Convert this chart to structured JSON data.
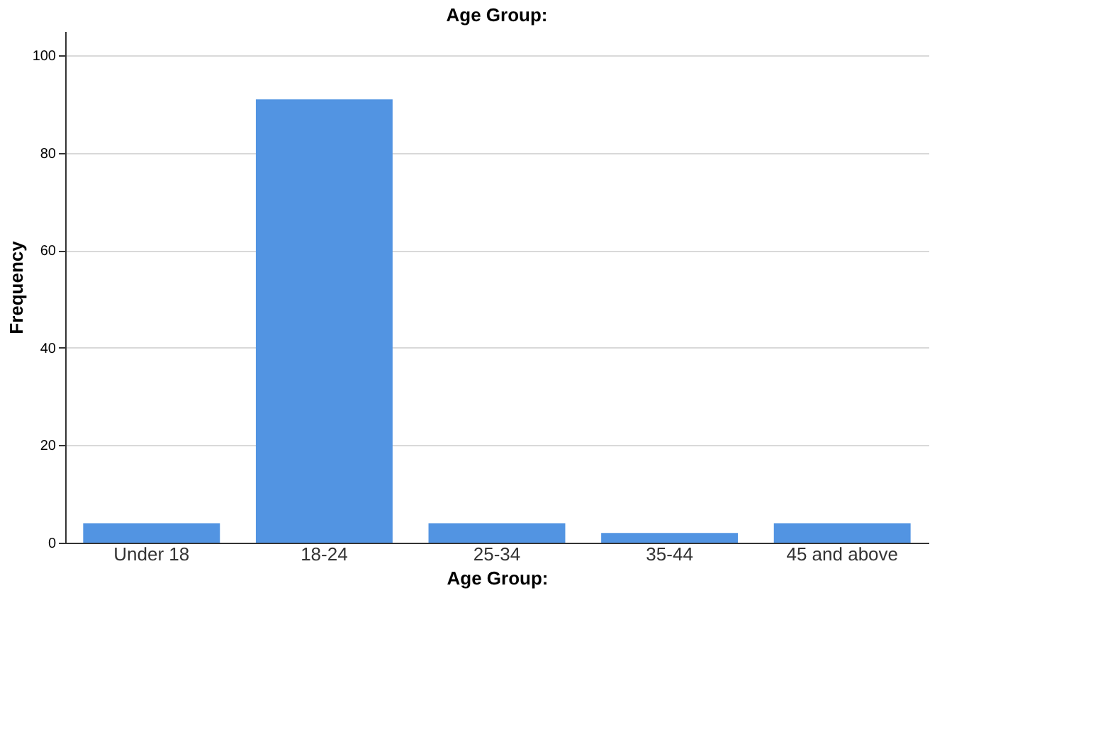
{
  "chart_data": {
    "type": "bar",
    "title": "Age Group:",
    "xlabel": "Age Group:",
    "ylabel": "Frequency",
    "categories": [
      "Under 18",
      "18-24",
      "25-34",
      "35-44",
      "45 and above"
    ],
    "values": [
      4,
      91,
      4,
      2,
      4
    ],
    "color": "#5294e2",
    "ylim": [
      0,
      105
    ],
    "yticks": [
      0,
      20,
      40,
      60,
      80,
      100
    ],
    "grid": "y"
  }
}
